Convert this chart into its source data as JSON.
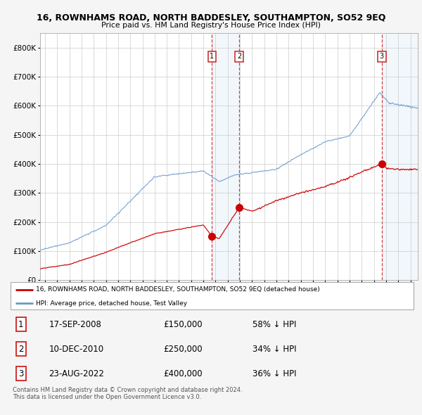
{
  "title": "16, ROWNHAMS ROAD, NORTH BADDESLEY, SOUTHAMPTON, SO52 9EQ",
  "subtitle": "Price paid vs. HM Land Registry's House Price Index (HPI)",
  "ylim": [
    0,
    850000
  ],
  "yticks": [
    0,
    100000,
    200000,
    300000,
    400000,
    500000,
    600000,
    700000,
    800000
  ],
  "ytick_labels": [
    "£0",
    "£100K",
    "£200K",
    "£300K",
    "£400K",
    "£500K",
    "£600K",
    "£700K",
    "£800K"
  ],
  "xlim_start": 1994.6,
  "xlim_end": 2025.6,
  "xticks": [
    1995,
    1996,
    1997,
    1998,
    1999,
    2000,
    2001,
    2002,
    2003,
    2004,
    2005,
    2006,
    2007,
    2008,
    2009,
    2010,
    2011,
    2012,
    2013,
    2014,
    2015,
    2016,
    2017,
    2018,
    2019,
    2020,
    2021,
    2022,
    2023,
    2024,
    2025
  ],
  "sale1_x": 2008.71,
  "sale1_y": 150000,
  "sale1_label": "1",
  "sale2_x": 2010.93,
  "sale2_y": 250000,
  "sale2_label": "2",
  "sale3_x": 2022.64,
  "sale3_y": 400000,
  "sale3_label": "3",
  "sale_color": "#cc0000",
  "hpi_color": "#6699cc",
  "grid_color": "#cccccc",
  "bg_color": "#f5f5f5",
  "plot_bg_color": "#ffffff",
  "legend_sale_label": "16, ROWNHAMS ROAD, NORTH BADDESLEY, SOUTHAMPTON, SO52 9EQ (detached house)",
  "legend_hpi_label": "HPI: Average price, detached house, Test Valley",
  "table_rows": [
    [
      "1",
      "17-SEP-2008",
      "£150,000",
      "58% ↓ HPI"
    ],
    [
      "2",
      "10-DEC-2010",
      "£250,000",
      "34% ↓ HPI"
    ],
    [
      "3",
      "23-AUG-2022",
      "£400,000",
      "36% ↓ HPI"
    ]
  ],
  "footnote": "Contains HM Land Registry data © Crown copyright and database right 2024.\nThis data is licensed under the Open Government Licence v3.0.",
  "shade1_x_start": 2008.71,
  "shade1_x_end": 2010.93,
  "shade2_x_start": 2022.64,
  "shade2_x_end": 2025.6
}
